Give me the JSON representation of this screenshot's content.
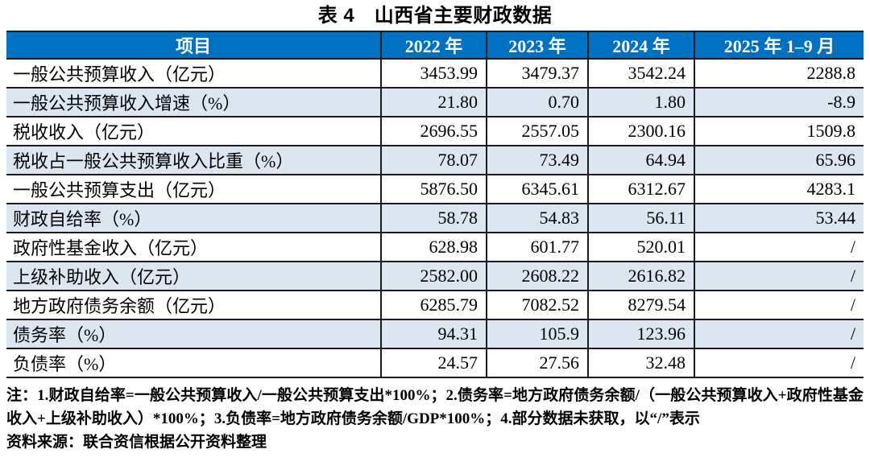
{
  "title": "表 4　山西省主要财政数据",
  "table": {
    "columns": [
      "项目",
      "2022 年",
      "2023 年",
      "2024 年",
      "2025 年 1–9 月"
    ],
    "rows": [
      {
        "label": "一般公共预算收入（亿元）",
        "values": [
          "3453.99",
          "3479.37",
          "3542.24",
          "2288.8"
        ]
      },
      {
        "label": "一般公共预算收入增速（%）",
        "values": [
          "21.80",
          "0.70",
          "1.80",
          "-8.9"
        ]
      },
      {
        "label": "税收收入（亿元）",
        "values": [
          "2696.55",
          "2557.05",
          "2300.16",
          "1509.8"
        ]
      },
      {
        "label": "税收占一般公共预算收入比重（%）",
        "values": [
          "78.07",
          "73.49",
          "64.94",
          "65.96"
        ]
      },
      {
        "label": "一般公共预算支出（亿元）",
        "values": [
          "5876.50",
          "6345.61",
          "6312.67",
          "4283.1"
        ]
      },
      {
        "label": "财政自给率（%）",
        "values": [
          "58.78",
          "54.83",
          "56.11",
          "53.44"
        ]
      },
      {
        "label": "政府性基金收入（亿元）",
        "values": [
          "628.98",
          "601.77",
          "520.01",
          "/"
        ]
      },
      {
        "label": "上级补助收入（亿元）",
        "values": [
          "2582.00",
          "2608.22",
          "2616.82",
          "/"
        ]
      },
      {
        "label": "地方政府债务余额（亿元）",
        "values": [
          "6285.79",
          "7082.52",
          "8279.54",
          "/"
        ]
      },
      {
        "label": "债务率（%）",
        "values": [
          "94.31",
          "105.9",
          "123.96",
          "/"
        ]
      },
      {
        "label": "负债率（%）",
        "values": [
          "24.57",
          "27.56",
          "32.48",
          "/"
        ]
      }
    ]
  },
  "notes": "注：1.财政自给率=一般公共预算收入/一般公共预算支出*100%；2.债务率=地方政府债务余额/（一般公共预算收入+政府性基金收入+上级补助收入）*100%；3.负债率=地方政府债务余额/GDP*100%；4.部分数据未获取，以“/”表示",
  "source": "资料来源：联合资信根据公开资料整理",
  "colors": {
    "header_bg": "#0070C0",
    "header_text": "#FFFFFF",
    "stripe_bg": "#DCE6F1",
    "border": "#1B1B1B"
  }
}
